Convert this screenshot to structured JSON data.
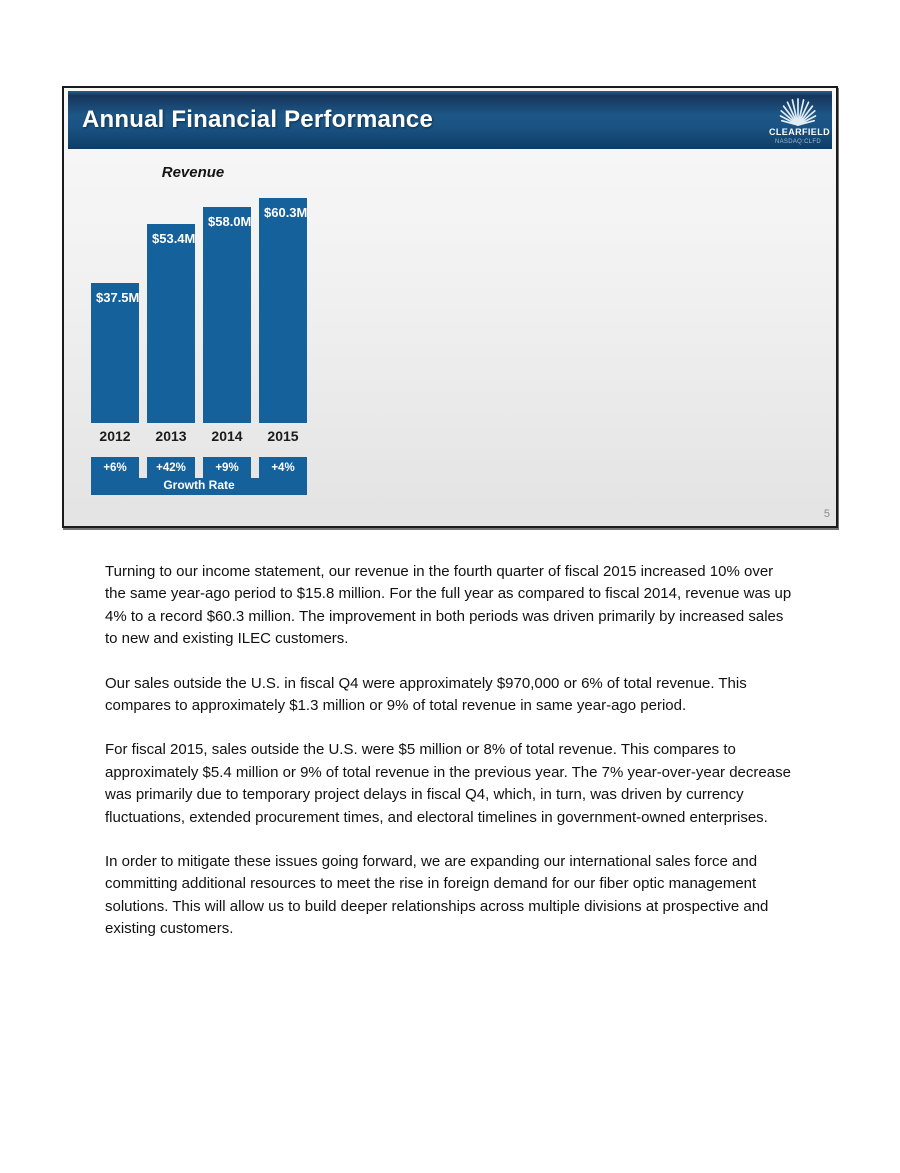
{
  "slide": {
    "title": "Annual Financial Performance",
    "logo": {
      "name": "CLEARFIELD",
      "ticker": "NASDAQ:CLFD"
    },
    "page_number": "5"
  },
  "chart_data": {
    "type": "bar",
    "title": "Revenue",
    "categories": [
      "2012",
      "2013",
      "2014",
      "2015"
    ],
    "values": [
      37.5,
      53.4,
      58.0,
      60.3
    ],
    "value_labels": [
      "$37.5M",
      "$53.4M",
      "$58.0M",
      "$60.3M"
    ],
    "growth_rates": [
      "+6%",
      "+42%",
      "+9%",
      "+4%"
    ],
    "growth_label": "Growth Rate",
    "unit": "USD millions",
    "ylim": [
      0,
      62
    ],
    "bar_color": "#15619c",
    "legend": "none",
    "grid": false
  },
  "paragraphs": [
    "Turning to our income statement, our revenue in the fourth quarter of fiscal 2015 increased 10% over the same year-ago period to $15.8 million. For the full year as compared to fiscal 2014, revenue was up 4% to a record $60.3 million. The improvement in both periods was driven primarily by increased sales to new and existing ILEC customers.",
    "Our sales outside the U.S. in fiscal Q4 were approximately $970,000 or 6% of total revenue. This compares to approximately $1.3 million or 9% of total revenue in same year-ago period.",
    "For fiscal 2015, sales outside the U.S. were $5 million or 8% of total revenue. This compares to approximately $5.4 million or 9% of total revenue in the previous year. The 7% year-over-year decrease was primarily due to temporary project delays in fiscal Q4, which, in turn, was driven by currency fluctuations, extended procurement times, and electoral timelines in government-owned enterprises.",
    "In order to mitigate these issues going forward, we are expanding our international sales force and committing additional resources to meet the rise in foreign demand for our fiber optic management solutions. This will allow us to build deeper relationships across multiple divisions at prospective and existing customers."
  ]
}
